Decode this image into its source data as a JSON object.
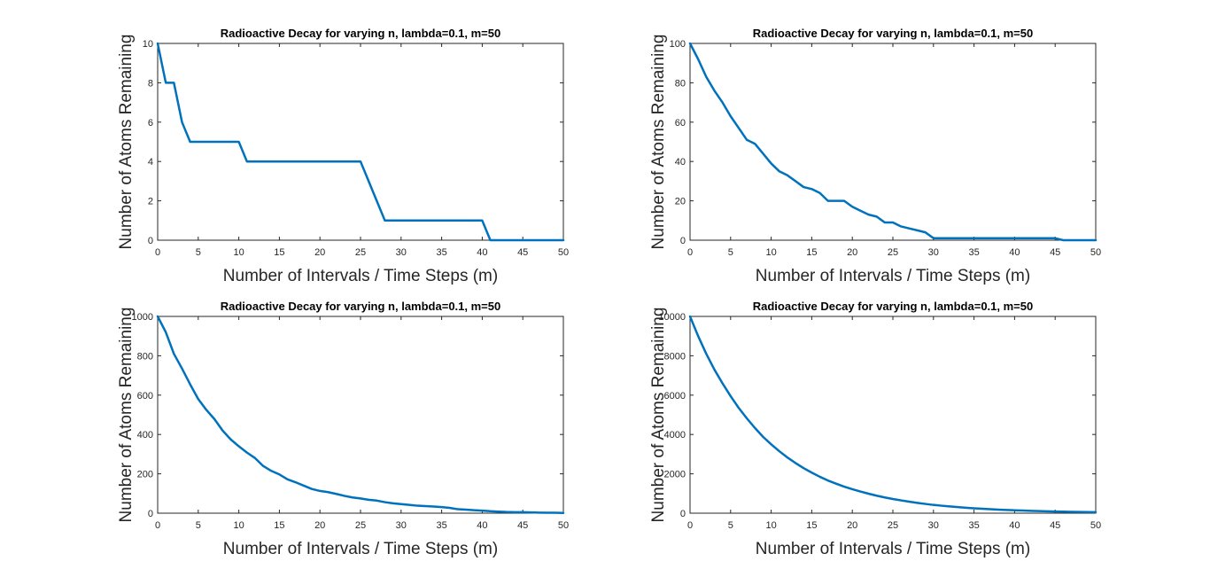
{
  "chart_data": [
    {
      "type": "line",
      "title": "Radioactive Decay for varying n,  lambda=0.1, m=50",
      "xlabel": "Number of Intervals / Time Steps (m)",
      "ylabel": "Number of Atoms Remaining",
      "xlim": [
        0,
        50
      ],
      "ylim": [
        0,
        10
      ],
      "xticks": [
        0,
        5,
        10,
        15,
        20,
        25,
        30,
        35,
        40,
        45,
        50
      ],
      "yticks": [
        0,
        2,
        4,
        6,
        8,
        10
      ],
      "grid": false,
      "series": [
        {
          "color": "#0072BD",
          "x": [
            0,
            1,
            2,
            3,
            4,
            5,
            6,
            7,
            8,
            9,
            10,
            11,
            12,
            13,
            14,
            15,
            16,
            17,
            18,
            19,
            20,
            21,
            22,
            23,
            24,
            25,
            26,
            27,
            28,
            29,
            30,
            31,
            32,
            33,
            34,
            35,
            36,
            37,
            38,
            39,
            40,
            41,
            42,
            43,
            44,
            45,
            46,
            47,
            48,
            49,
            50
          ],
          "y": [
            10,
            8,
            8,
            6,
            5,
            5,
            5,
            5,
            5,
            5,
            5,
            4,
            4,
            4,
            4,
            4,
            4,
            4,
            4,
            4,
            4,
            4,
            4,
            4,
            4,
            4,
            3,
            2,
            1,
            1,
            1,
            1,
            1,
            1,
            1,
            1,
            1,
            1,
            1,
            1,
            1,
            0,
            0,
            0,
            0,
            0,
            0,
            0,
            0,
            0,
            0
          ]
        }
      ]
    },
    {
      "type": "line",
      "title": "Radioactive Decay for varying n,  lambda=0.1, m=50",
      "xlabel": "Number of Intervals / Time Steps (m)",
      "ylabel": "Number of Atoms Remaining",
      "xlim": [
        0,
        50
      ],
      "ylim": [
        0,
        100
      ],
      "xticks": [
        0,
        5,
        10,
        15,
        20,
        25,
        30,
        35,
        40,
        45,
        50
      ],
      "yticks": [
        0,
        20,
        40,
        60,
        80,
        100
      ],
      "grid": false,
      "series": [
        {
          "color": "#0072BD",
          "x": [
            0,
            1,
            2,
            3,
            4,
            5,
            6,
            7,
            8,
            9,
            10,
            11,
            12,
            13,
            14,
            15,
            16,
            17,
            18,
            19,
            20,
            21,
            22,
            23,
            24,
            25,
            26,
            27,
            28,
            29,
            30,
            31,
            32,
            33,
            34,
            35,
            36,
            37,
            38,
            39,
            40,
            41,
            42,
            43,
            44,
            45,
            46,
            47,
            48,
            49,
            50
          ],
          "y": [
            100,
            92,
            83,
            76,
            70,
            63,
            57,
            51,
            49,
            44,
            39,
            35,
            33,
            30,
            27,
            26,
            24,
            20,
            20,
            20,
            17,
            15,
            13,
            12,
            9,
            9,
            7,
            6,
            5,
            4,
            1,
            1,
            1,
            1,
            1,
            1,
            1,
            1,
            1,
            1,
            1,
            1,
            1,
            1,
            1,
            1,
            0,
            0,
            0,
            0,
            0
          ]
        }
      ]
    },
    {
      "type": "line",
      "title": "Radioactive Decay for varying n,  lambda=0.1, m=50",
      "xlabel": "Number of Intervals / Time Steps (m)",
      "ylabel": "Number of Atoms Remaining",
      "xlim": [
        0,
        50
      ],
      "ylim": [
        0,
        1000
      ],
      "xticks": [
        0,
        5,
        10,
        15,
        20,
        25,
        30,
        35,
        40,
        45,
        50
      ],
      "yticks": [
        0,
        200,
        400,
        600,
        800,
        1000
      ],
      "grid": false,
      "series": [
        {
          "color": "#0072BD",
          "x": [
            0,
            1,
            2,
            3,
            4,
            5,
            6,
            7,
            8,
            9,
            10,
            11,
            12,
            13,
            14,
            15,
            16,
            17,
            18,
            19,
            20,
            21,
            22,
            23,
            24,
            25,
            26,
            27,
            28,
            29,
            30,
            31,
            32,
            33,
            34,
            35,
            36,
            37,
            38,
            39,
            40,
            41,
            42,
            43,
            44,
            45,
            46,
            47,
            48,
            49,
            50
          ],
          "y": [
            1000,
            920,
            810,
            735,
            655,
            580,
            525,
            478,
            420,
            375,
            340,
            308,
            280,
            240,
            215,
            197,
            172,
            157,
            140,
            123,
            113,
            107,
            98,
            88,
            80,
            75,
            68,
            64,
            56,
            50,
            46,
            42,
            38,
            36,
            34,
            31,
            27,
            20,
            18,
            15,
            13,
            10,
            8,
            6,
            5,
            5,
            4,
            3,
            2,
            2,
            1
          ]
        }
      ]
    },
    {
      "type": "line",
      "title": "Radioactive Decay for varying n,  lambda=0.1, m=50",
      "xlabel": "Number of Intervals / Time Steps (m)",
      "ylabel": "Number of Atoms Remaining",
      "xlim": [
        0,
        50
      ],
      "ylim": [
        0,
        10000
      ],
      "xticks": [
        0,
        5,
        10,
        15,
        20,
        25,
        30,
        35,
        40,
        45,
        50
      ],
      "yticks": [
        0,
        2000,
        4000,
        6000,
        8000,
        10000
      ],
      "grid": false,
      "series": [
        {
          "color": "#0072BD",
          "x": [
            0,
            1,
            2,
            3,
            4,
            5,
            6,
            7,
            8,
            9,
            10,
            11,
            12,
            13,
            14,
            15,
            16,
            17,
            18,
            19,
            20,
            21,
            22,
            23,
            24,
            25,
            26,
            27,
            28,
            29,
            30,
            31,
            32,
            33,
            34,
            35,
            36,
            37,
            38,
            39,
            40,
            41,
            42,
            43,
            44,
            45,
            46,
            47,
            48,
            49,
            50
          ],
          "y": [
            10000,
            9000,
            8100,
            7300,
            6600,
            5950,
            5350,
            4820,
            4330,
            3880,
            3500,
            3150,
            2830,
            2550,
            2290,
            2060,
            1850,
            1660,
            1500,
            1350,
            1220,
            1100,
            990,
            890,
            800,
            720,
            650,
            585,
            525,
            470,
            420,
            380,
            342,
            308,
            277,
            249,
            224,
            202,
            182,
            164,
            148,
            133,
            120,
            108,
            97,
            87,
            78,
            70,
            63,
            57,
            51
          ]
        }
      ]
    }
  ]
}
